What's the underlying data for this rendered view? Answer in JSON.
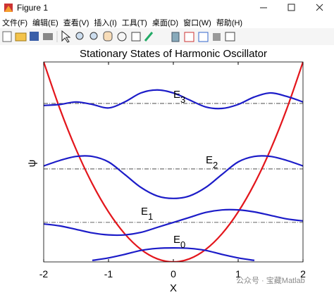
{
  "window": {
    "title": "Figure 1",
    "menu": [
      "文件(F)",
      "编辑(E)",
      "查看(V)",
      "插入(I)",
      "工具(T)",
      "桌面(D)",
      "窗口(W)",
      "帮助(H)"
    ]
  },
  "watermark": "公众号 · 宝藏Matlab",
  "chart_data": {
    "type": "line",
    "title": "Stationary States of Harmonic Oscillator",
    "xlabel": "X",
    "ylabel": "ψ",
    "x": [
      -2,
      -1.75,
      -1.5,
      -1.25,
      -1,
      -0.75,
      -0.5,
      -0.25,
      0,
      0.25,
      0.5,
      0.75,
      1,
      1.25,
      1.5,
      1.75,
      2
    ],
    "xlim": [
      -2,
      2
    ],
    "ylim": [
      0,
      4
    ],
    "xticks": [
      -2,
      -1,
      0,
      1,
      2
    ],
    "reference_lines": [
      3.17,
      1.86,
      0.79
    ],
    "series": [
      {
        "color": "#e3161c",
        "values": [
          4,
          3.0625,
          2.25,
          1.5625,
          1,
          0.5625,
          0.25,
          0.0625,
          0,
          0.0625,
          0.25,
          0.5625,
          1,
          1.5625,
          2.25,
          3.0625,
          4
        ]
      },
      {
        "color": "#1c1cc8",
        "values": [
          3.13,
          3.15,
          3.2,
          3.15,
          3.08,
          3.2,
          3.38,
          3.44,
          3.38,
          3.24,
          3.1,
          3.07,
          3.15,
          3.3,
          3.38,
          3.31,
          3.2
        ]
      },
      {
        "color": "#1c1cc8",
        "values": [
          1.92,
          2.03,
          2.11,
          2.11,
          2.0,
          1.75,
          1.49,
          1.32,
          1.27,
          1.32,
          1.49,
          1.75,
          2.0,
          2.11,
          2.11,
          2.03,
          1.92
        ]
      },
      {
        "color": "#1c1cc8",
        "values": [
          0.76,
          0.72,
          0.65,
          0.58,
          0.54,
          0.54,
          0.59,
          0.69,
          0.79,
          0.89,
          0.99,
          1.04,
          1.04,
          1.0,
          0.93,
          0.86,
          0.82
        ]
      },
      {
        "color": "#1c1cc8",
        "values": [
          null,
          null,
          null,
          0.03,
          0.08,
          0.15,
          0.23,
          0.27,
          0.28,
          0.27,
          0.23,
          0.15,
          0.08,
          0.03,
          null,
          null,
          null
        ]
      }
    ],
    "annotations": [
      {
        "text": "E",
        "sub": "3"
      },
      {
        "text": "E",
        "sub": "2"
      },
      {
        "text": "E",
        "sub": "1"
      },
      {
        "text": "E",
        "sub": "0"
      }
    ]
  }
}
